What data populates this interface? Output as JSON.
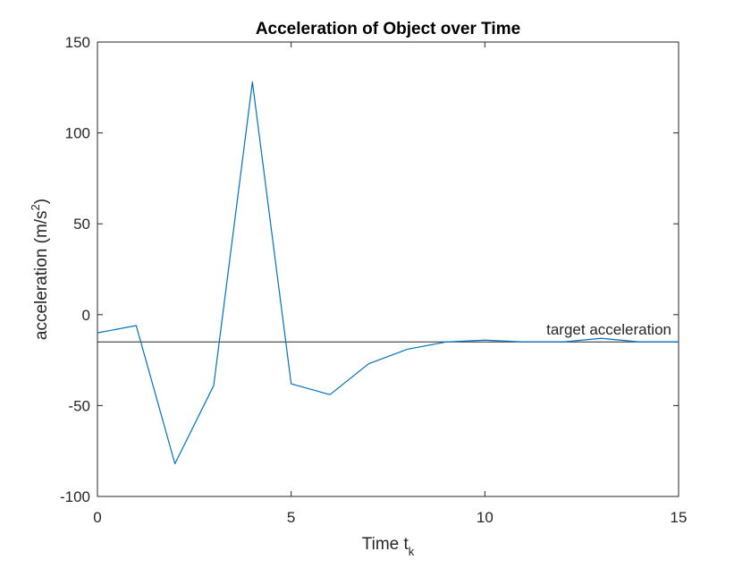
{
  "chart_data": {
    "type": "line",
    "title": "Acceleration of Object over Time",
    "xlabel": {
      "base": "Time t",
      "subscript": "k"
    },
    "ylabel": {
      "base": "acceleration (m/s",
      "superscript": "2",
      "suffix": ")"
    },
    "xlim": [
      0,
      15
    ],
    "ylim": [
      -100,
      150
    ],
    "x_ticks": [
      0,
      5,
      10,
      15
    ],
    "x_tick_labels": [
      "0",
      "5",
      "10",
      "15"
    ],
    "y_ticks": [
      -100,
      -50,
      0,
      50,
      100,
      150
    ],
    "y_tick_labels": [
      "-100",
      "-50",
      "0",
      "50",
      "100",
      "150"
    ],
    "grid": false,
    "series": [
      {
        "color": "#0072BD",
        "x": [
          0,
          1,
          2,
          3,
          4,
          5,
          6,
          7,
          8,
          9,
          10,
          11,
          12,
          13,
          14,
          15
        ],
        "y": [
          -10,
          -6,
          -82,
          -39,
          128,
          -38,
          -44,
          -27,
          -19,
          -15,
          -14,
          -15,
          -15,
          -13,
          -15,
          -15
        ]
      }
    ],
    "reference_line": {
      "y": -15,
      "color": "#262626",
      "label": "target acceleration"
    }
  }
}
